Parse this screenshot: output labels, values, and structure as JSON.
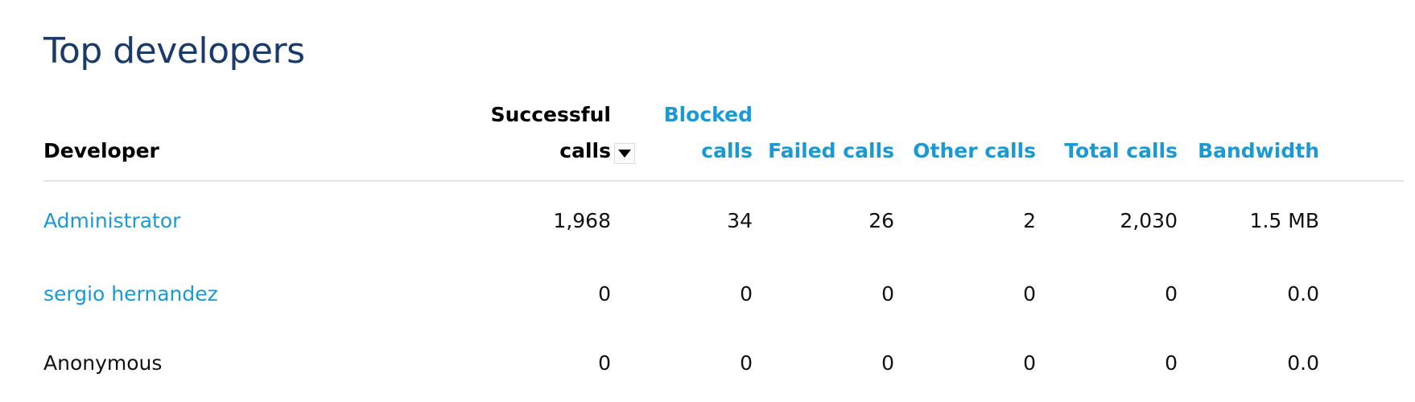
{
  "panel": {
    "title": "Top developers"
  },
  "table": {
    "headers": {
      "developer": "Developer",
      "successful": [
        "Successful",
        "calls"
      ],
      "blocked": [
        "Blocked",
        "calls"
      ],
      "failed": "Failed calls",
      "other": "Other calls",
      "total": "Total calls",
      "bandwidth": "Bandwidth"
    },
    "sort": {
      "column": "successful",
      "direction": "descending",
      "icon": "sort-down-icon"
    },
    "rows": [
      {
        "developer": "Administrator",
        "is_link": true,
        "successful": "1,968",
        "blocked": "34",
        "failed": "26",
        "other": "2",
        "total": "2,030",
        "bandwidth": "1.5 MB"
      },
      {
        "developer": "sergio hernandez",
        "is_link": true,
        "successful": "0",
        "blocked": "0",
        "failed": "0",
        "other": "0",
        "total": "0",
        "bandwidth": "0.0"
      },
      {
        "developer": "Anonymous",
        "is_link": false,
        "successful": "0",
        "blocked": "0",
        "failed": "0",
        "other": "0",
        "total": "0",
        "bandwidth": "0.0"
      }
    ]
  },
  "colors": {
    "title": "#1a3a6a",
    "link": "#1a9ad3",
    "text": "#111111",
    "divider": "#e4e4e4"
  }
}
